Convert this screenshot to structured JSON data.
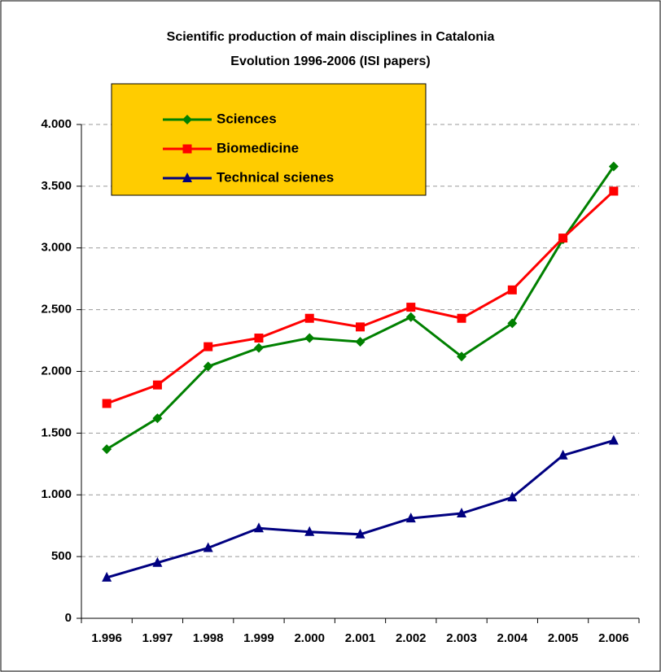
{
  "chart_data": {
    "type": "line",
    "title": "Scientific production of main disciplines in Catalonia",
    "subtitle": "Evolution 1996-2006 (ISI papers)",
    "categories": [
      "1.996",
      "1.997",
      "1.998",
      "1.999",
      "2.000",
      "2.001",
      "2.002",
      "2.003",
      "2.004",
      "2.005",
      "2.006"
    ],
    "series": [
      {
        "name": "Sciences",
        "color": "#008000",
        "marker": "diamond",
        "values": [
          1370,
          1620,
          2040,
          2190,
          2270,
          2240,
          2440,
          2120,
          2390,
          3070,
          3660
        ]
      },
      {
        "name": "Biomedicine",
        "color": "#ff0000",
        "marker": "square",
        "values": [
          1740,
          1890,
          2200,
          2270,
          2430,
          2360,
          2520,
          2430,
          2660,
          3080,
          3460
        ]
      },
      {
        "name": "Technical scienes",
        "color": "#000080",
        "marker": "triangle",
        "values": [
          330,
          450,
          570,
          730,
          700,
          680,
          810,
          850,
          980,
          1320,
          1440
        ]
      }
    ],
    "ylim": [
      0,
      4000
    ],
    "yticks": [
      0,
      500,
      {
        "value": 1000,
        "label": "1.000"
      },
      {
        "value": 1500,
        "label": "1.500"
      },
      {
        "value": 2000,
        "label": "2.000"
      },
      {
        "value": 2500,
        "label": "2.500"
      },
      {
        "value": 3000,
        "label": "3.000"
      },
      {
        "value": 3500,
        "label": "3.500"
      },
      {
        "value": 4000,
        "label": "4.000"
      }
    ],
    "grid": true,
    "legend_color": "#ffcc00",
    "legend": "upper left"
  }
}
